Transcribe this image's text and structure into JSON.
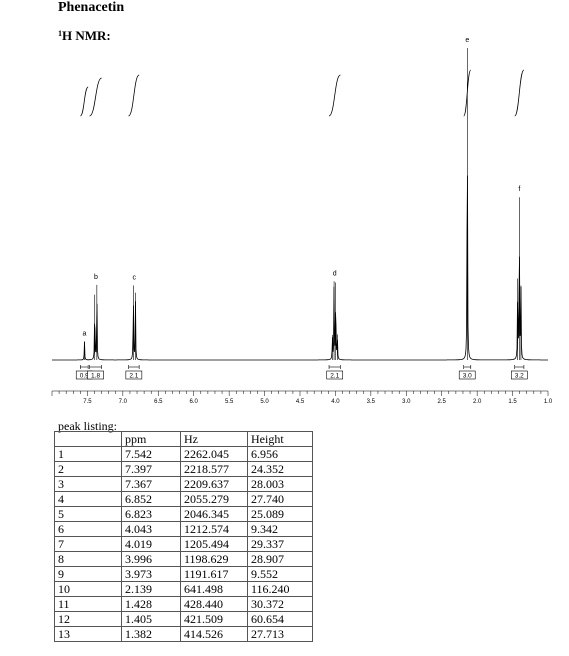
{
  "document": {
    "title": "Phenacetin",
    "subtitle_sup": "1",
    "subtitle": "H NMR:",
    "peak_caption": "peak listing:"
  },
  "table": {
    "headers": [
      "",
      "ppm",
      "Hz",
      "Height"
    ],
    "rows": [
      [
        "1",
        "7.542",
        "2262.045",
        "6.956"
      ],
      [
        "2",
        "7.397",
        "2218.577",
        "24.352"
      ],
      [
        "3",
        "7.367",
        "2209.637",
        "28.003"
      ],
      [
        "4",
        "6.852",
        "2055.279",
        "27.740"
      ],
      [
        "5",
        "6.823",
        "2046.345",
        "25.089"
      ],
      [
        "6",
        "4.043",
        "1212.574",
        "9.342"
      ],
      [
        "7",
        "4.019",
        "1205.494",
        "29.337"
      ],
      [
        "8",
        "3.996",
        "1198.629",
        "28.907"
      ],
      [
        "9",
        "3.973",
        "1191.617",
        "9.552"
      ],
      [
        "10",
        "2.139",
        "641.498",
        "116.240"
      ],
      [
        "11",
        "1.428",
        "428.440",
        "30.372"
      ],
      [
        "12",
        "1.405",
        "421.509",
        "60.654"
      ],
      [
        "13",
        "1.382",
        "414.526",
        "27.713"
      ]
    ]
  },
  "chart_data": {
    "type": "line",
    "title": "",
    "xlabel": "",
    "ylabel": "",
    "x_reversed": true,
    "xlim": [
      8.0,
      1.0
    ],
    "x_tick_labels": [
      "7.5",
      "7.0",
      "6.5",
      "6.0",
      "5.5",
      "5.0",
      "4.5",
      "4.0",
      "3.5",
      "3.0",
      "2.5",
      "2.0",
      "1.5",
      "1.0"
    ],
    "peak_labels": [
      {
        "label": "a",
        "ppm": 7.542
      },
      {
        "label": "b",
        "ppm": 7.38
      },
      {
        "label": "c",
        "ppm": 6.84
      },
      {
        "label": "d",
        "ppm": 4.01
      },
      {
        "label": "e",
        "ppm": 2.139
      },
      {
        "label": "f",
        "ppm": 1.405
      }
    ],
    "integrations": [
      {
        "label": "0.9",
        "from": 7.6,
        "to": 7.49
      },
      {
        "label": "1.8",
        "from": 7.47,
        "to": 7.3
      },
      {
        "label": "2.1",
        "from": 6.92,
        "to": 6.77
      },
      {
        "label": "2.1",
        "from": 4.09,
        "to": 3.93
      },
      {
        "label": "3.0",
        "from": 2.19,
        "to": 2.09
      },
      {
        "label": "3.2",
        "from": 1.47,
        "to": 1.34
      }
    ],
    "peaks_ppm": [
      7.542,
      7.397,
      7.367,
      6.852,
      6.823,
      4.043,
      4.019,
      3.996,
      3.973,
      2.139,
      1.428,
      1.405,
      1.382
    ],
    "peaks_height": [
      6.956,
      24.352,
      28.003,
      27.74,
      25.089,
      9.342,
      29.337,
      28.907,
      9.552,
      116.24,
      30.372,
      60.654,
      27.713
    ],
    "colors": {
      "trace": "#000000"
    }
  }
}
